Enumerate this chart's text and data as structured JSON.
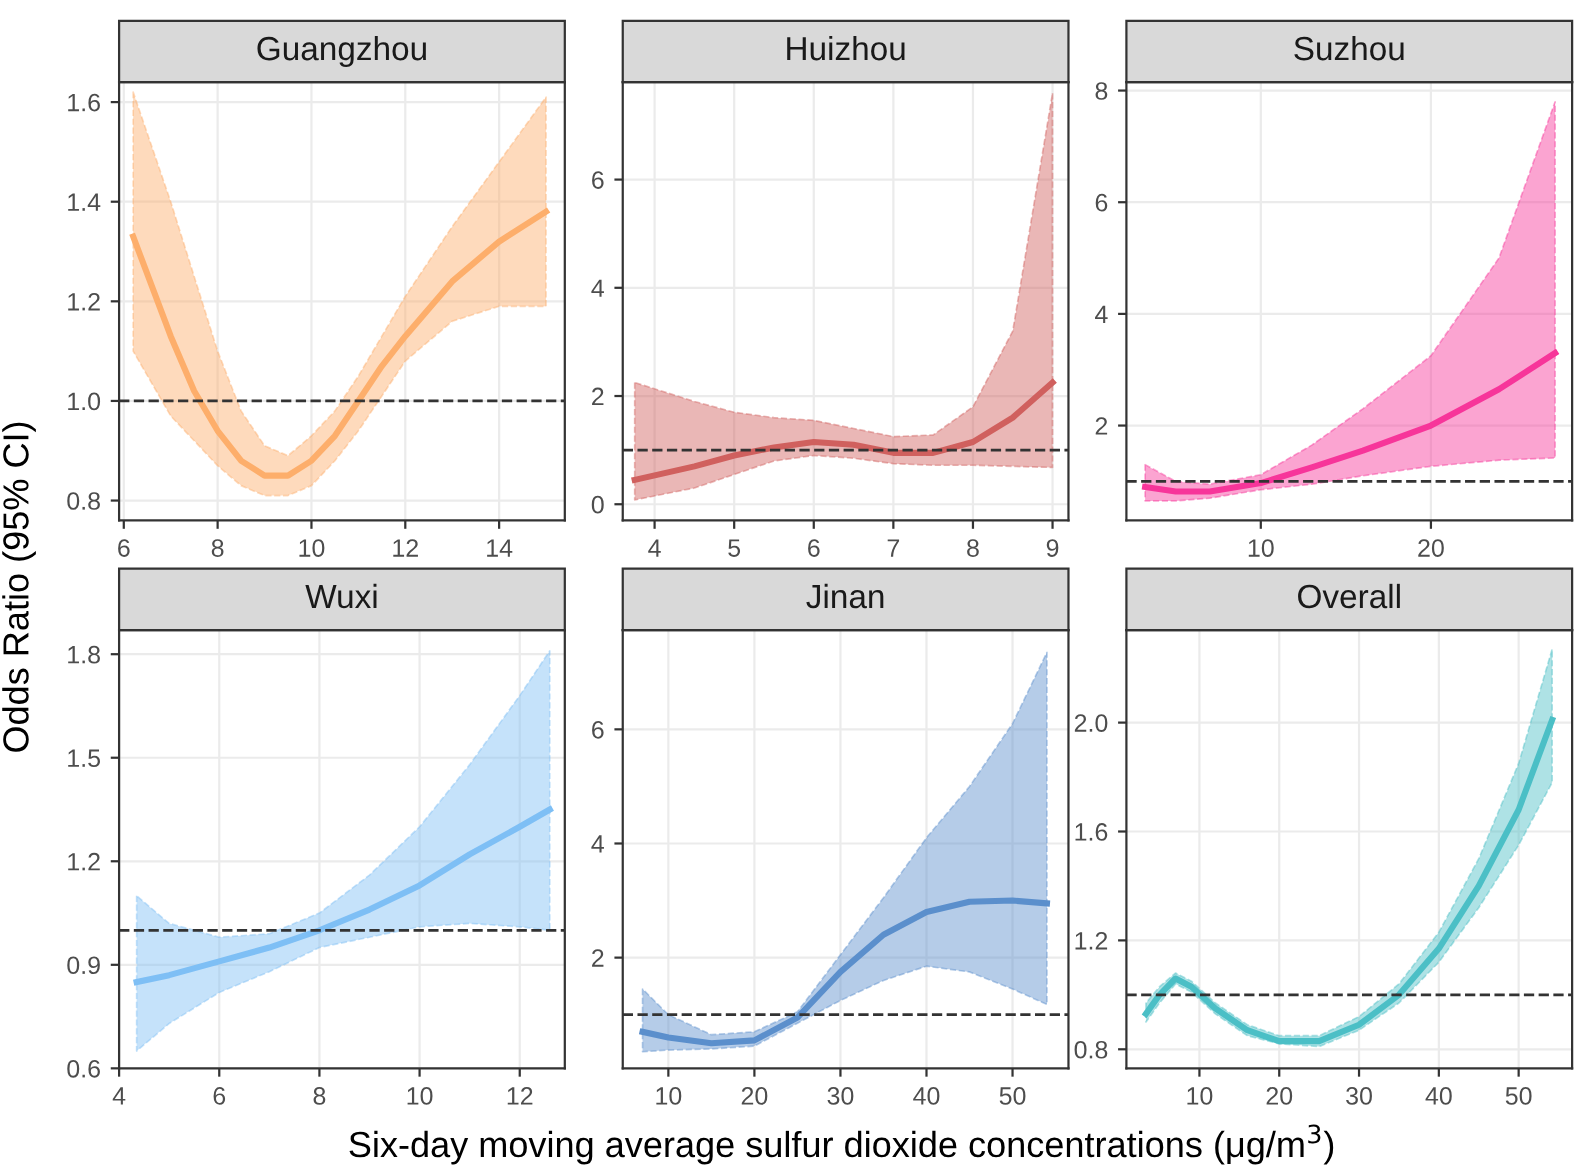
{
  "chart_data": [
    {
      "type": "line",
      "title": "Guangzhou",
      "ylabel": "Odds Ratio (95% CI)",
      "xlim": [
        5.9,
        15.4
      ],
      "xticks": [
        6,
        8,
        10,
        12,
        14
      ],
      "ylim": [
        0.76,
        1.64
      ],
      "yticks": [
        0.8,
        {
          "value": 1,
          "label": "1.0"
        },
        1.2,
        1.4,
        1.6
      ],
      "grid": true,
      "ref_lines": [
        {
          "axis": "y",
          "value": 1,
          "line_style": "dashed",
          "color": "#333333"
        }
      ],
      "series": [
        {
          "color": "#fdae6b",
          "x": [
            6.2,
            7,
            7.5,
            8,
            8.5,
            9,
            9.5,
            10,
            10.5,
            11,
            11.5,
            12,
            13,
            14,
            15
          ],
          "values": [
            1.33,
            1.13,
            1.02,
            0.94,
            0.88,
            0.85,
            0.85,
            0.88,
            0.93,
            1.0,
            1.07,
            1.13,
            1.24,
            1.32,
            1.38
          ],
          "lower": [
            1.1,
            0.97,
            0.92,
            0.87,
            0.83,
            0.81,
            0.81,
            0.83,
            0.88,
            0.94,
            1.01,
            1.08,
            1.16,
            1.19,
            1.19
          ],
          "upper": [
            1.62,
            1.4,
            1.25,
            1.1,
            0.98,
            0.91,
            0.89,
            0.93,
            0.98,
            1.05,
            1.13,
            1.21,
            1.35,
            1.48,
            1.61
          ]
        }
      ]
    },
    {
      "type": "line",
      "title": "Huizhou",
      "xlim": [
        3.6,
        9.2
      ],
      "xticks": [
        4,
        5,
        6,
        7,
        8,
        9
      ],
      "ylim": [
        -0.3,
        7.8
      ],
      "yticks": [
        0,
        2,
        4,
        6
      ],
      "grid": true,
      "ref_lines": [
        {
          "axis": "y",
          "value": 1,
          "line_style": "dashed",
          "color": "#333333"
        }
      ],
      "series": [
        {
          "color": "#d0605e",
          "x": [
            3.75,
            4.5,
            5,
            5.5,
            6,
            6.5,
            7,
            7.5,
            8,
            8.5,
            9
          ],
          "values": [
            0.45,
            0.7,
            0.9,
            1.05,
            1.15,
            1.1,
            0.95,
            0.95,
            1.15,
            1.6,
            2.25
          ],
          "lower": [
            0.08,
            0.3,
            0.55,
            0.8,
            0.9,
            0.85,
            0.75,
            0.72,
            0.72,
            0.7,
            0.68
          ],
          "upper": [
            2.25,
            1.9,
            1.7,
            1.6,
            1.55,
            1.4,
            1.25,
            1.28,
            1.8,
            3.2,
            7.6
          ]
        }
      ]
    },
    {
      "type": "line",
      "title": "Suzhou",
      "xlim": [
        2.1,
        28.3
      ],
      "xticks": [
        10,
        20
      ],
      "ylim": [
        0.3,
        8.15
      ],
      "yticks": [
        2,
        4,
        6,
        8
      ],
      "grid": true,
      "ref_lines": [
        {
          "axis": "y",
          "value": 1,
          "line_style": "dashed",
          "color": "#333333"
        }
      ],
      "series": [
        {
          "color": "#f7359a",
          "x": [
            3.2,
            5,
            7,
            10,
            13,
            16,
            20,
            24,
            27.3
          ],
          "values": [
            0.9,
            0.82,
            0.82,
            0.97,
            1.25,
            1.55,
            2.0,
            2.65,
            3.3
          ],
          "lower": [
            0.65,
            0.65,
            0.7,
            0.85,
            0.95,
            1.1,
            1.27,
            1.38,
            1.42
          ],
          "upper": [
            1.3,
            1.0,
            0.95,
            1.12,
            1.65,
            2.3,
            3.25,
            5.0,
            7.8
          ]
        }
      ]
    },
    {
      "type": "line",
      "title": "Wuxi",
      "xlim": [
        4,
        12.9
      ],
      "xticks": [
        4,
        6,
        8,
        10,
        12
      ],
      "ylim": [
        0.6,
        1.87
      ],
      "yticks": [
        0.6,
        0.9,
        1.2,
        1.5,
        1.8
      ],
      "grid": true,
      "ref_lines": [
        {
          "axis": "y",
          "value": 1,
          "line_style": "dashed",
          "color": "#333333"
        }
      ],
      "series": [
        {
          "color": "#7ebff5",
          "x": [
            4.35,
            5,
            6,
            7,
            8,
            9,
            10,
            11,
            12,
            12.6
          ],
          "values": [
            0.85,
            0.87,
            0.91,
            0.95,
            1.0,
            1.06,
            1.13,
            1.22,
            1.3,
            1.35
          ],
          "lower": [
            0.65,
            0.73,
            0.82,
            0.88,
            0.95,
            0.98,
            1.01,
            1.02,
            1.01,
            1.0
          ],
          "upper": [
            1.1,
            1.02,
            0.98,
            0.99,
            1.05,
            1.16,
            1.3,
            1.48,
            1.68,
            1.81
          ]
        }
      ]
    },
    {
      "type": "line",
      "title": "Jinan",
      "xlabel": "Six-day moving average sulfur dioxide concentrations (μg/m$^{3}$)",
      "xlim": [
        4.7,
        56.5
      ],
      "xticks": [
        10,
        20,
        30,
        40,
        50
      ],
      "ylim": [
        0.06,
        7.74
      ],
      "yticks": [
        2,
        4,
        6
      ],
      "grid": true,
      "ref_lines": [
        {
          "axis": "y",
          "value": 1,
          "line_style": "dashed",
          "color": "#333333"
        }
      ],
      "series": [
        {
          "color": "#5b8fcc",
          "x": [
            7,
            10,
            15,
            20,
            25,
            30,
            35,
            40,
            45,
            50,
            54
          ],
          "values": [
            0.7,
            0.6,
            0.5,
            0.55,
            0.95,
            1.75,
            2.4,
            2.8,
            2.98,
            3.0,
            2.95
          ],
          "lower": [
            0.35,
            0.38,
            0.4,
            0.45,
            0.85,
            1.25,
            1.6,
            1.85,
            1.75,
            1.45,
            1.18
          ],
          "upper": [
            1.45,
            1.0,
            0.65,
            0.7,
            1.05,
            2.05,
            3.05,
            4.1,
            5.0,
            6.1,
            7.35
          ]
        }
      ]
    },
    {
      "type": "line",
      "title": "Overall",
      "xlim": [
        0.85,
        56.7
      ],
      "xticks": [
        10,
        20,
        30,
        40,
        50
      ],
      "ylim": [
        0.73,
        2.34
      ],
      "yticks": [
        0.8,
        1.2,
        1.6,
        {
          "value": 2,
          "label": "2.0"
        }
      ],
      "grid": true,
      "ref_lines": [
        {
          "axis": "y",
          "value": 1,
          "line_style": "dashed",
          "color": "#333333"
        }
      ],
      "series": [
        {
          "color": "#4bbfc6",
          "x": [
            3.3,
            5,
            7,
            9,
            12,
            16,
            20,
            25,
            30,
            35,
            40,
            45,
            50,
            54.2
          ],
          "values": [
            0.93,
            1.0,
            1.06,
            1.03,
            0.95,
            0.87,
            0.83,
            0.83,
            0.89,
            1.0,
            1.17,
            1.4,
            1.68,
            2.01
          ],
          "lower": [
            0.9,
            0.97,
            1.04,
            1.01,
            0.93,
            0.85,
            0.82,
            0.81,
            0.87,
            0.97,
            1.12,
            1.32,
            1.55,
            1.78
          ],
          "upper": [
            0.97,
            1.03,
            1.08,
            1.05,
            0.97,
            0.89,
            0.85,
            0.85,
            0.92,
            1.04,
            1.23,
            1.5,
            1.85,
            2.27
          ]
        }
      ]
    }
  ]
}
